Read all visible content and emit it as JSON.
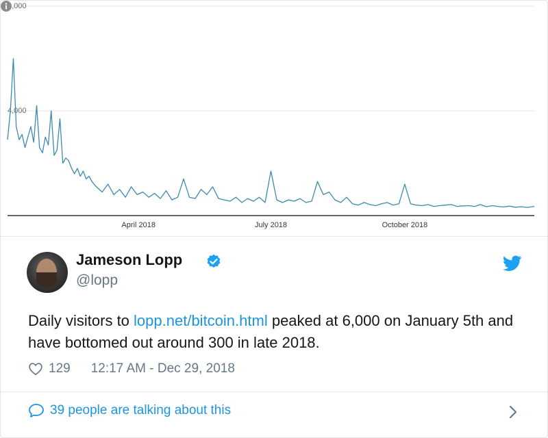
{
  "chart_data": {
    "type": "line",
    "ytick_labels": [
      "8,000",
      "4,000"
    ],
    "yticks": [
      8000,
      4000
    ],
    "xtick_labels": [
      "April 2018",
      "July 2018",
      "October 2018"
    ],
    "x_range": [
      "2018-01-01",
      "2018-12-29"
    ],
    "ylim": [
      0,
      8000
    ],
    "grid": true,
    "series": [
      {
        "color": "#3a8ab0",
        "x": [
          "2018-01-01",
          "2018-01-03",
          "2018-01-05",
          "2018-01-07",
          "2018-01-09",
          "2018-01-11",
          "2018-01-13",
          "2018-01-15",
          "2018-01-17",
          "2018-01-19",
          "2018-01-21",
          "2018-01-23",
          "2018-01-25",
          "2018-01-27",
          "2018-01-29",
          "2018-01-31",
          "2018-02-02",
          "2018-02-04",
          "2018-02-06",
          "2018-02-08",
          "2018-02-10",
          "2018-02-12",
          "2018-02-14",
          "2018-02-16",
          "2018-02-18",
          "2018-02-20",
          "2018-02-22",
          "2018-02-24",
          "2018-02-26",
          "2018-02-28",
          "2018-03-03",
          "2018-03-07",
          "2018-03-11",
          "2018-03-15",
          "2018-03-19",
          "2018-03-23",
          "2018-03-27",
          "2018-03-31",
          "2018-04-04",
          "2018-04-08",
          "2018-04-12",
          "2018-04-16",
          "2018-04-20",
          "2018-04-24",
          "2018-04-28",
          "2018-05-02",
          "2018-05-06",
          "2018-05-10",
          "2018-05-14",
          "2018-05-18",
          "2018-05-22",
          "2018-05-26",
          "2018-05-30",
          "2018-06-03",
          "2018-06-07",
          "2018-06-11",
          "2018-06-15",
          "2018-06-19",
          "2018-06-23",
          "2018-06-27",
          "2018-07-01",
          "2018-07-05",
          "2018-07-09",
          "2018-07-13",
          "2018-07-17",
          "2018-07-21",
          "2018-07-25",
          "2018-07-29",
          "2018-08-02",
          "2018-08-06",
          "2018-08-10",
          "2018-08-14",
          "2018-08-18",
          "2018-08-22",
          "2018-08-26",
          "2018-08-30",
          "2018-09-03",
          "2018-09-07",
          "2018-09-11",
          "2018-09-15",
          "2018-09-19",
          "2018-09-23",
          "2018-09-27",
          "2018-10-01",
          "2018-10-05",
          "2018-10-09",
          "2018-10-13",
          "2018-10-17",
          "2018-10-21",
          "2018-10-25",
          "2018-10-29",
          "2018-11-02",
          "2018-11-06",
          "2018-11-10",
          "2018-11-14",
          "2018-11-18",
          "2018-11-22",
          "2018-11-26",
          "2018-11-30",
          "2018-12-04",
          "2018-12-08",
          "2018-12-12",
          "2018-12-16",
          "2018-12-20",
          "2018-12-24",
          "2018-12-29"
        ],
        "y": [
          2900,
          4000,
          6000,
          3400,
          2900,
          3100,
          2600,
          3000,
          3400,
          2800,
          4200,
          2600,
          2400,
          3000,
          2700,
          4000,
          2300,
          2500,
          3700,
          2000,
          2200,
          2100,
          1800,
          1600,
          1800,
          1500,
          1700,
          1400,
          1500,
          1300,
          1100,
          900,
          1200,
          800,
          1000,
          700,
          1100,
          800,
          900,
          700,
          850,
          650,
          950,
          600,
          700,
          1400,
          700,
          650,
          1000,
          800,
          1100,
          650,
          600,
          550,
          700,
          500,
          650,
          550,
          700,
          500,
          1700,
          600,
          500,
          600,
          550,
          650,
          500,
          550,
          1300,
          800,
          900,
          600,
          500,
          700,
          450,
          400,
          500,
          420,
          380,
          450,
          500,
          400,
          450,
          1200,
          450,
          400,
          380,
          420,
          350,
          380,
          400,
          420,
          350,
          370,
          380,
          350,
          420,
          340,
          380,
          350,
          330,
          360,
          320,
          340,
          310,
          350
        ]
      }
    ]
  },
  "tweet": {
    "author_name": "Jameson Lopp",
    "handle": "@lopp",
    "text_before": "Daily visitors to ",
    "link_text": "lopp.net/bitcoin.html",
    "text_after": " peaked at 6,000 on January 5th and have bottomed out around 300 in late 2018.",
    "likes": "129",
    "timestamp": "12:17 AM - Dec 29, 2018",
    "conversation_text": "39 people are talking about this"
  },
  "colors": {
    "brand": "#1da1f2",
    "link": "#1b95e0",
    "muted": "#657786",
    "border": "#e1e8ed"
  },
  "icons": [
    "info-icon",
    "verified-badge-icon",
    "twitter-bird-icon",
    "heart-icon",
    "reply-bubble-icon",
    "chevron-right-icon"
  ]
}
